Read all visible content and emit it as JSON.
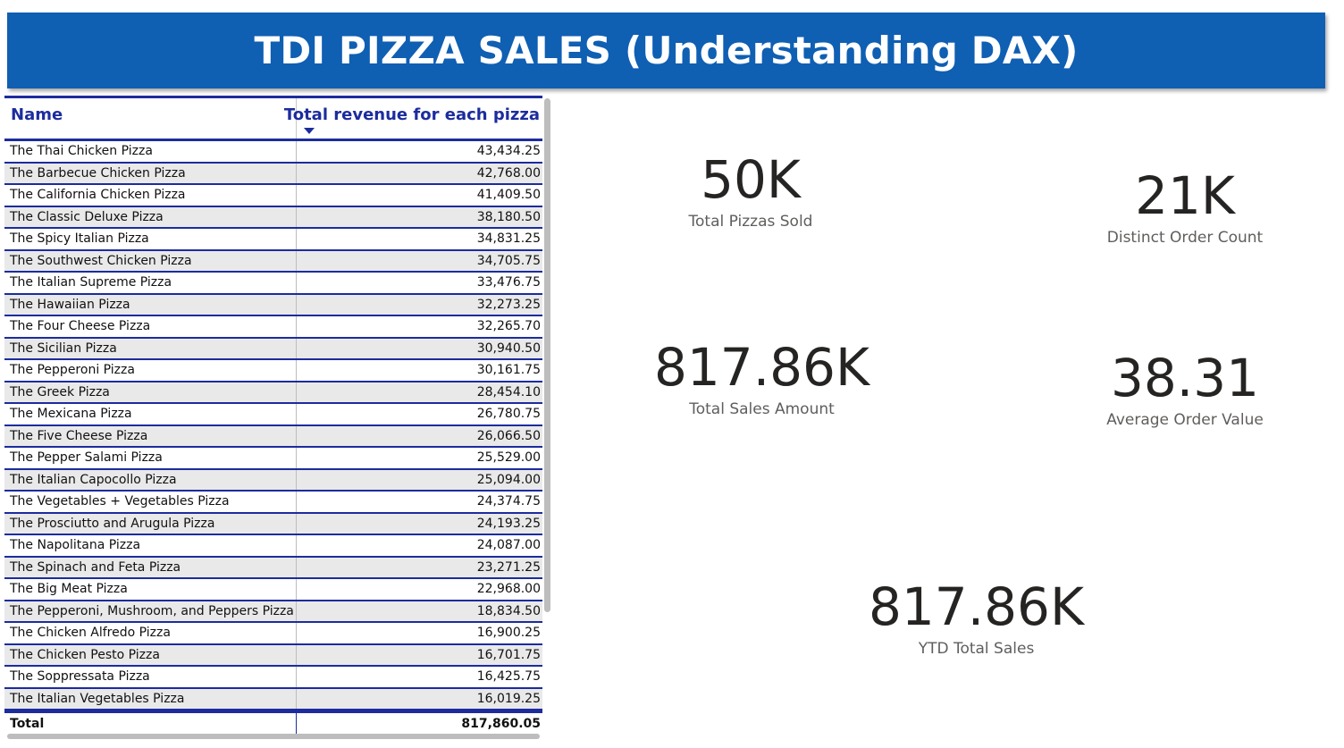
{
  "header": {
    "title": "TDI PIZZA SALES (Understanding DAX)",
    "background": "#0F5FB3"
  },
  "table": {
    "columns": [
      "Name",
      "Total revenue for each pizza"
    ],
    "sort": {
      "column": "Total revenue for each pizza",
      "direction": "descending"
    },
    "rows": [
      [
        "The Thai Chicken Pizza",
        "43,434.25"
      ],
      [
        "The Barbecue Chicken Pizza",
        "42,768.00"
      ],
      [
        "The California Chicken Pizza",
        "41,409.50"
      ],
      [
        "The Classic Deluxe Pizza",
        "38,180.50"
      ],
      [
        "The Spicy Italian Pizza",
        "34,831.25"
      ],
      [
        "The Southwest Chicken Pizza",
        "34,705.75"
      ],
      [
        "The Italian Supreme Pizza",
        "33,476.75"
      ],
      [
        "The Hawaiian Pizza",
        "32,273.25"
      ],
      [
        "The Four Cheese Pizza",
        "32,265.70"
      ],
      [
        "The Sicilian Pizza",
        "30,940.50"
      ],
      [
        "The Pepperoni Pizza",
        "30,161.75"
      ],
      [
        "The Greek Pizza",
        "28,454.10"
      ],
      [
        "The Mexicana Pizza",
        "26,780.75"
      ],
      [
        "The Five Cheese Pizza",
        "26,066.50"
      ],
      [
        "The Pepper Salami Pizza",
        "25,529.00"
      ],
      [
        "The Italian Capocollo Pizza",
        "25,094.00"
      ],
      [
        "The Vegetables + Vegetables Pizza",
        "24,374.75"
      ],
      [
        "The Prosciutto and Arugula Pizza",
        "24,193.25"
      ],
      [
        "The Napolitana Pizza",
        "24,087.00"
      ],
      [
        "The Spinach and Feta Pizza",
        "23,271.25"
      ],
      [
        "The Big Meat Pizza",
        "22,968.00"
      ],
      [
        "The Pepperoni, Mushroom, and Peppers Pizza",
        "18,834.50"
      ],
      [
        "The Chicken Alfredo Pizza",
        "16,900.25"
      ],
      [
        "The Chicken Pesto Pizza",
        "16,701.75"
      ],
      [
        "The Soppressata Pizza",
        "16,425.75"
      ],
      [
        "The Italian Vegetables Pizza",
        "16,019.25"
      ]
    ],
    "total": {
      "label": "Total",
      "value": "817,860.05"
    }
  },
  "kpis": {
    "total_pizzas_sold": {
      "value": "50K",
      "label": "Total Pizzas Sold"
    },
    "distinct_order_count": {
      "value": "21K",
      "label": "Distinct Order Count"
    },
    "total_sales_amount": {
      "value": "817.86K",
      "label": "Total Sales Amount"
    },
    "average_order_value": {
      "value": "38.31",
      "label": "Average Order Value"
    },
    "ytd_total_sales": {
      "value": "817.86K",
      "label": "YTD Total Sales"
    }
  },
  "colors": {
    "accent": "#1C2C9E",
    "banner": "#0F5FB3",
    "row_alt": "#E9E9E9"
  }
}
